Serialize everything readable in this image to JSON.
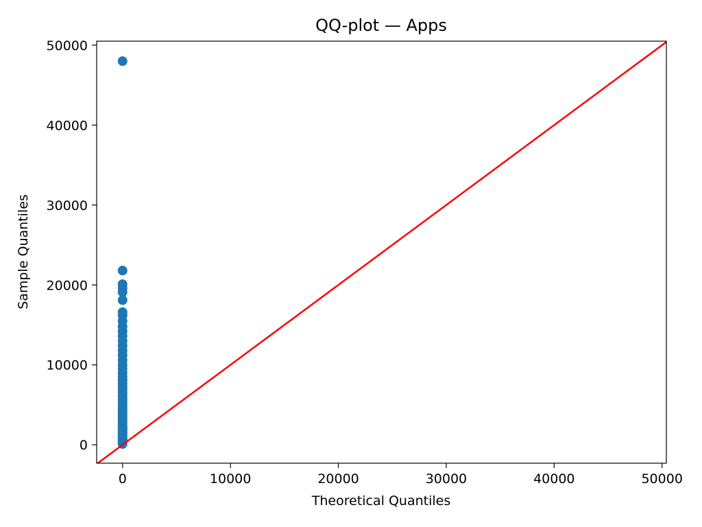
{
  "chart_data": {
    "type": "scatter",
    "title": "QQ-plot — Apps",
    "xlabel": "Theoretical Quantiles",
    "ylabel": "Sample Quantiles",
    "xlim": [
      -2400,
      50400
    ],
    "ylim": [
      -2300,
      50500
    ],
    "x_ticks": [
      0,
      10000,
      20000,
      30000,
      40000,
      50000
    ],
    "y_ticks": [
      0,
      10000,
      20000,
      30000,
      40000,
      50000
    ],
    "grid": false,
    "point_color": "#1f77b4",
    "line_color": "#ff0000",
    "reference_line": {
      "from": [
        -2400,
        -2400
      ],
      "to": [
        50400,
        50400
      ]
    },
    "series": [
      {
        "x": [
          0,
          0,
          0,
          0,
          0,
          0,
          0,
          0,
          0,
          0,
          0,
          0,
          0,
          0,
          0,
          0,
          0,
          0,
          0,
          0,
          0,
          0,
          0,
          0,
          0,
          0,
          0,
          0,
          0,
          0,
          0,
          0,
          0,
          0,
          0,
          0,
          0,
          0,
          0,
          0,
          0,
          0,
          0,
          0,
          0,
          0,
          0,
          0,
          0,
          0,
          0,
          0
        ],
        "y": [
          100,
          300,
          500,
          700,
          900,
          1100,
          1300,
          1500,
          1700,
          1900,
          2100,
          2300,
          2500,
          2800,
          3100,
          3400,
          3700,
          4000,
          4300,
          4600,
          4900,
          5300,
          5700,
          6100,
          6500,
          6900,
          7300,
          7700,
          8100,
          8500,
          9000,
          9500,
          10000,
          10600,
          11200,
          11800,
          12400,
          13000,
          13600,
          14200,
          14800,
          15500,
          16200,
          16600,
          18100,
          19100,
          19600,
          20100,
          21800,
          48000,
          700,
          2000
        ]
      }
    ]
  }
}
